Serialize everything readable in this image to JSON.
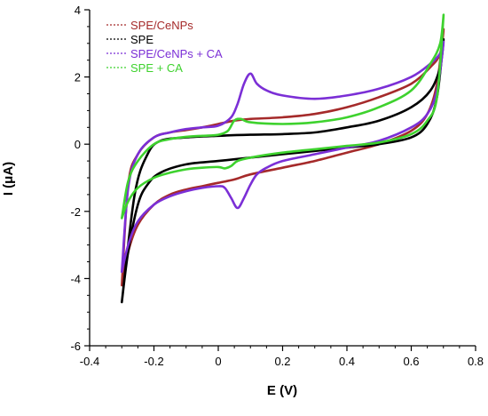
{
  "chart_data": {
    "type": "line",
    "title": "",
    "xlabel": "E (V)",
    "ylabel": "I (μA)",
    "xlim": [
      -0.4,
      0.8
    ],
    "ylim": [
      -6,
      4
    ],
    "grid": false,
    "legend_placement": "top-left",
    "x_ticks": [
      "-0.4",
      "-0.2",
      "0",
      "0.2",
      "0.4",
      "0.6",
      "0.8"
    ],
    "y_ticks": [
      "-6",
      "-4",
      "-2",
      "0",
      "2",
      "4"
    ],
    "series": [
      {
        "name": "SPE/CeNPs",
        "color": "#a52a2a",
        "x": [
          -0.3,
          -0.28,
          -0.25,
          -0.2,
          -0.15,
          -0.1,
          -0.05,
          0.0,
          0.05,
          0.1,
          0.2,
          0.3,
          0.4,
          0.5,
          0.6,
          0.65,
          0.68,
          0.7,
          0.69,
          0.66,
          0.6,
          0.5,
          0.4,
          0.3,
          0.2,
          0.1,
          0.05,
          0.0,
          -0.05,
          -0.1,
          -0.15,
          -0.2,
          -0.25,
          -0.28,
          -0.3
        ],
        "y": [
          -4.2,
          -3.2,
          -2.4,
          -1.8,
          -1.5,
          -1.35,
          -1.25,
          -1.15,
          -1.05,
          -0.9,
          -0.7,
          -0.5,
          -0.25,
          0.0,
          0.4,
          0.9,
          1.8,
          3.4,
          2.7,
          2.3,
          1.8,
          1.4,
          1.1,
          0.9,
          0.8,
          0.75,
          0.7,
          0.6,
          0.5,
          0.42,
          0.35,
          0.2,
          -0.3,
          -1.2,
          -4.2
        ]
      },
      {
        "name": "SPE",
        "color": "#000000",
        "x": [
          -0.3,
          -0.28,
          -0.25,
          -0.22,
          -0.18,
          -0.1,
          0.0,
          0.1,
          0.2,
          0.3,
          0.4,
          0.5,
          0.6,
          0.65,
          0.68,
          0.7,
          0.69,
          0.66,
          0.6,
          0.5,
          0.4,
          0.3,
          0.2,
          0.1,
          0.0,
          -0.1,
          -0.18,
          -0.22,
          -0.26,
          -0.3
        ],
        "y": [
          -4.7,
          -3.2,
          -1.8,
          -1.2,
          -0.85,
          -0.6,
          -0.5,
          -0.4,
          -0.3,
          -0.2,
          -0.1,
          0.0,
          0.2,
          0.6,
          1.4,
          3.1,
          2.3,
          1.6,
          1.1,
          0.7,
          0.5,
          0.35,
          0.3,
          0.28,
          0.25,
          0.2,
          0.1,
          -0.3,
          -1.5,
          -4.7
        ]
      },
      {
        "name": "SPE/CeNPs + CA",
        "color": "#7b2fd6",
        "x": [
          -0.3,
          -0.28,
          -0.25,
          -0.2,
          -0.15,
          -0.1,
          -0.05,
          0.0,
          0.02,
          0.04,
          0.06,
          0.08,
          0.1,
          0.12,
          0.15,
          0.2,
          0.3,
          0.4,
          0.5,
          0.6,
          0.65,
          0.68,
          0.7,
          0.69,
          0.66,
          0.6,
          0.5,
          0.4,
          0.3,
          0.2,
          0.15,
          0.12,
          0.1,
          0.08,
          0.06,
          0.04,
          0.0,
          -0.05,
          -0.1,
          -0.15,
          -0.2,
          -0.25,
          -0.28,
          -0.3
        ],
        "y": [
          -3.8,
          -3.0,
          -2.3,
          -1.8,
          -1.55,
          -1.4,
          -1.3,
          -1.25,
          -1.3,
          -1.6,
          -1.9,
          -1.6,
          -1.2,
          -0.9,
          -0.7,
          -0.5,
          -0.3,
          -0.1,
          0.1,
          0.5,
          0.9,
          1.6,
          3.0,
          2.7,
          2.4,
          2.0,
          1.65,
          1.45,
          1.35,
          1.45,
          1.6,
          1.8,
          2.1,
          1.8,
          1.2,
          0.8,
          0.55,
          0.5,
          0.45,
          0.35,
          0.2,
          -0.3,
          -1.3,
          -3.8
        ]
      },
      {
        "name": "SPE + CA",
        "color": "#3ed22e",
        "x": [
          -0.3,
          -0.28,
          -0.25,
          -0.2,
          -0.15,
          -0.1,
          -0.05,
          0.0,
          0.02,
          0.04,
          0.06,
          0.1,
          0.2,
          0.3,
          0.4,
          0.5,
          0.6,
          0.65,
          0.68,
          0.7,
          0.69,
          0.66,
          0.6,
          0.5,
          0.4,
          0.3,
          0.2,
          0.1,
          0.07,
          0.05,
          0.03,
          0.0,
          -0.05,
          -0.1,
          -0.15,
          -0.2,
          -0.25,
          -0.28,
          -0.3
        ],
        "y": [
          -2.2,
          -1.7,
          -1.3,
          -1.0,
          -0.85,
          -0.75,
          -0.7,
          -0.68,
          -0.72,
          -0.65,
          -0.5,
          -0.4,
          -0.25,
          -0.15,
          -0.05,
          0.05,
          0.3,
          0.7,
          1.4,
          3.8,
          3.0,
          2.4,
          1.6,
          1.1,
          0.8,
          0.65,
          0.6,
          0.65,
          0.75,
          0.7,
          0.4,
          0.28,
          0.25,
          0.22,
          0.15,
          0.0,
          -0.5,
          -1.1,
          -2.2
        ]
      }
    ]
  }
}
